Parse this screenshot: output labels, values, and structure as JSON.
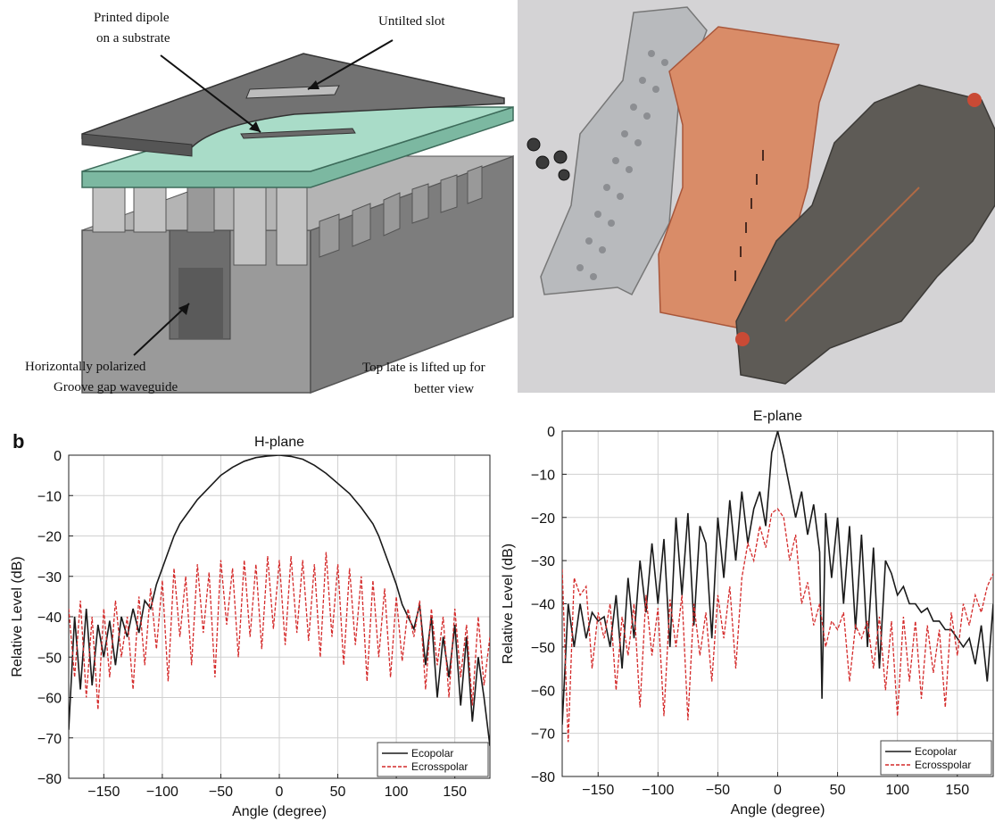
{
  "diagram": {
    "labels": {
      "printed_dipole_1": "Printed dipole",
      "printed_dipole_2": "on a substrate",
      "untilted_slot": "Untilted slot",
      "groove_1": "Horizontally polarized",
      "groove_2": "Groove gap waveguide",
      "lifted_1": "Top late is lifted up for",
      "lifted_2": "better view"
    }
  },
  "panel_label": "b",
  "colors": {
    "copolar": "#1a1a1a",
    "crosspolar": "#d42a2a",
    "grid": "#d0d0d0",
    "plate": "#6e6e6e",
    "substrate": "#9fd6bf",
    "metal": "#a8a8a8",
    "copper": "#d98c68"
  },
  "chart_data": [
    {
      "type": "line",
      "title": "H-plane",
      "xlabel": "Angle (degree)",
      "ylabel": "Relative Level (dB)",
      "xlim": [
        -180,
        180
      ],
      "ylim": [
        -80,
        0
      ],
      "xticks": [
        -150,
        -100,
        -50,
        0,
        50,
        100,
        150
      ],
      "yticks": [
        0,
        -10,
        -20,
        -30,
        -40,
        -50,
        -60,
        -70,
        -80
      ],
      "grid": true,
      "legend_position": "bottom-right",
      "series": [
        {
          "name": "Ecopolar",
          "style": "solid",
          "x": [
            -180,
            -175,
            -170,
            -165,
            -160,
            -155,
            -150,
            -145,
            -140,
            -135,
            -130,
            -125,
            -120,
            -115,
            -110,
            -105,
            -100,
            -95,
            -90,
            -85,
            -80,
            -70,
            -60,
            -50,
            -40,
            -30,
            -20,
            -10,
            0,
            10,
            20,
            30,
            40,
            50,
            60,
            70,
            80,
            85,
            90,
            95,
            100,
            105,
            110,
            115,
            120,
            125,
            130,
            135,
            140,
            145,
            150,
            155,
            160,
            165,
            170,
            175,
            180
          ],
          "y": [
            -68,
            -40,
            -58,
            -38,
            -57,
            -42,
            -50,
            -41,
            -52,
            -40,
            -45,
            -38,
            -44,
            -36,
            -38,
            -32,
            -28,
            -24,
            -20,
            -17,
            -15,
            -11,
            -8,
            -5,
            -3,
            -1.5,
            -0.6,
            -0.2,
            0,
            -0.3,
            -1,
            -2.5,
            -4.5,
            -7,
            -9.5,
            -13,
            -17,
            -20,
            -24,
            -28,
            -32,
            -37,
            -40,
            -43,
            -37,
            -52,
            -40,
            -60,
            -45,
            -55,
            -42,
            -62,
            -45,
            -66,
            -50,
            -60,
            -72
          ]
        },
        {
          "name": "Ecrosspolar",
          "style": "dashed",
          "x": [
            -180,
            -175,
            -170,
            -165,
            -160,
            -155,
            -150,
            -145,
            -140,
            -135,
            -130,
            -125,
            -120,
            -115,
            -110,
            -105,
            -100,
            -95,
            -90,
            -85,
            -80,
            -75,
            -70,
            -65,
            -60,
            -55,
            -50,
            -45,
            -40,
            -35,
            -30,
            -25,
            -20,
            -15,
            -10,
            -5,
            0,
            5,
            10,
            15,
            20,
            25,
            30,
            35,
            40,
            45,
            50,
            55,
            60,
            65,
            70,
            75,
            80,
            85,
            90,
            95,
            100,
            105,
            110,
            115,
            120,
            125,
            130,
            135,
            140,
            145,
            150,
            155,
            160,
            165,
            170,
            175,
            180
          ],
          "y": [
            -38,
            -55,
            -36,
            -60,
            -40,
            -63,
            -38,
            -55,
            -36,
            -50,
            -40,
            -58,
            -35,
            -52,
            -33,
            -48,
            -31,
            -56,
            -28,
            -45,
            -30,
            -52,
            -27,
            -44,
            -29,
            -55,
            -26,
            -42,
            -28,
            -50,
            -26,
            -45,
            -27,
            -48,
            -25,
            -43,
            -26,
            -47,
            -25,
            -44,
            -26,
            -46,
            -27,
            -50,
            -24,
            -45,
            -27,
            -52,
            -28,
            -47,
            -30,
            -56,
            -31,
            -50,
            -33,
            -55,
            -35,
            -51,
            -38,
            -45,
            -36,
            -58,
            -38,
            -52,
            -40,
            -60,
            -38,
            -55,
            -42,
            -62,
            -40,
            -57,
            -45
          ]
        }
      ]
    },
    {
      "type": "line",
      "title": "E-plane",
      "xlabel": "Angle (degree)",
      "ylabel": "Relative Level (dB)",
      "xlim": [
        -180,
        180
      ],
      "ylim": [
        -80,
        0
      ],
      "xticks": [
        -150,
        -100,
        -50,
        0,
        50,
        100,
        150
      ],
      "yticks": [
        0,
        -10,
        -20,
        -30,
        -40,
        -50,
        -60,
        -70,
        -80
      ],
      "grid": true,
      "legend_position": "bottom-right",
      "series": [
        {
          "name": "Ecopolar",
          "style": "solid",
          "x": [
            -180,
            -175,
            -170,
            -165,
            -160,
            -155,
            -150,
            -145,
            -140,
            -135,
            -130,
            -125,
            -120,
            -115,
            -110,
            -105,
            -100,
            -95,
            -90,
            -85,
            -80,
            -75,
            -70,
            -65,
            -60,
            -55,
            -50,
            -45,
            -40,
            -35,
            -30,
            -25,
            -20,
            -15,
            -10,
            -5,
            0,
            5,
            10,
            15,
            20,
            25,
            30,
            35,
            37,
            40,
            45,
            50,
            55,
            60,
            65,
            70,
            75,
            80,
            85,
            90,
            95,
            100,
            105,
            110,
            115,
            120,
            125,
            130,
            135,
            140,
            145,
            150,
            155,
            160,
            165,
            170,
            175,
            180
          ],
          "y": [
            -68,
            -40,
            -50,
            -40,
            -48,
            -42,
            -44,
            -43,
            -50,
            -38,
            -55,
            -34,
            -48,
            -30,
            -42,
            -26,
            -40,
            -25,
            -50,
            -20,
            -38,
            -19,
            -45,
            -22,
            -26,
            -48,
            -20,
            -34,
            -16,
            -30,
            -14,
            -26,
            -18,
            -14,
            -22,
            -5,
            0,
            -6,
            -13,
            -20,
            -14,
            -24,
            -17,
            -28,
            -62,
            -19,
            -34,
            -20,
            -40,
            -22,
            -46,
            -24,
            -50,
            -27,
            -55,
            -30,
            -33,
            -38,
            -36,
            -40,
            -40,
            -42,
            -41,
            -44,
            -44,
            -46,
            -46,
            -48,
            -50,
            -48,
            -54,
            -45,
            -58,
            -40
          ]
        },
        {
          "name": "Ecrosspolar",
          "style": "dashed",
          "x": [
            -180,
            -175,
            -170,
            -165,
            -160,
            -155,
            -150,
            -145,
            -140,
            -135,
            -130,
            -125,
            -120,
            -115,
            -110,
            -105,
            -100,
            -95,
            -90,
            -85,
            -80,
            -75,
            -70,
            -65,
            -60,
            -55,
            -50,
            -45,
            -40,
            -35,
            -30,
            -25,
            -20,
            -15,
            -10,
            -5,
            0,
            5,
            10,
            15,
            20,
            25,
            30,
            35,
            40,
            45,
            50,
            55,
            60,
            65,
            70,
            75,
            80,
            85,
            90,
            95,
            100,
            105,
            110,
            115,
            120,
            125,
            130,
            135,
            140,
            145,
            150,
            155,
            160,
            165,
            170,
            175,
            180
          ],
          "y": [
            -32,
            -72,
            -34,
            -38,
            -36,
            -55,
            -42,
            -48,
            -40,
            -60,
            -43,
            -52,
            -40,
            -64,
            -38,
            -52,
            -41,
            -66,
            -39,
            -50,
            -38,
            -67,
            -40,
            -52,
            -42,
            -58,
            -38,
            -48,
            -36,
            -55,
            -34,
            -26,
            -30,
            -22,
            -27,
            -19,
            -18,
            -20,
            -30,
            -24,
            -40,
            -35,
            -45,
            -40,
            -50,
            -44,
            -46,
            -42,
            -58,
            -45,
            -48,
            -44,
            -55,
            -43,
            -60,
            -44,
            -66,
            -43,
            -58,
            -44,
            -62,
            -45,
            -56,
            -46,
            -64,
            -42,
            -52,
            -40,
            -45,
            -38,
            -42,
            -36,
            -33
          ]
        }
      ]
    }
  ]
}
